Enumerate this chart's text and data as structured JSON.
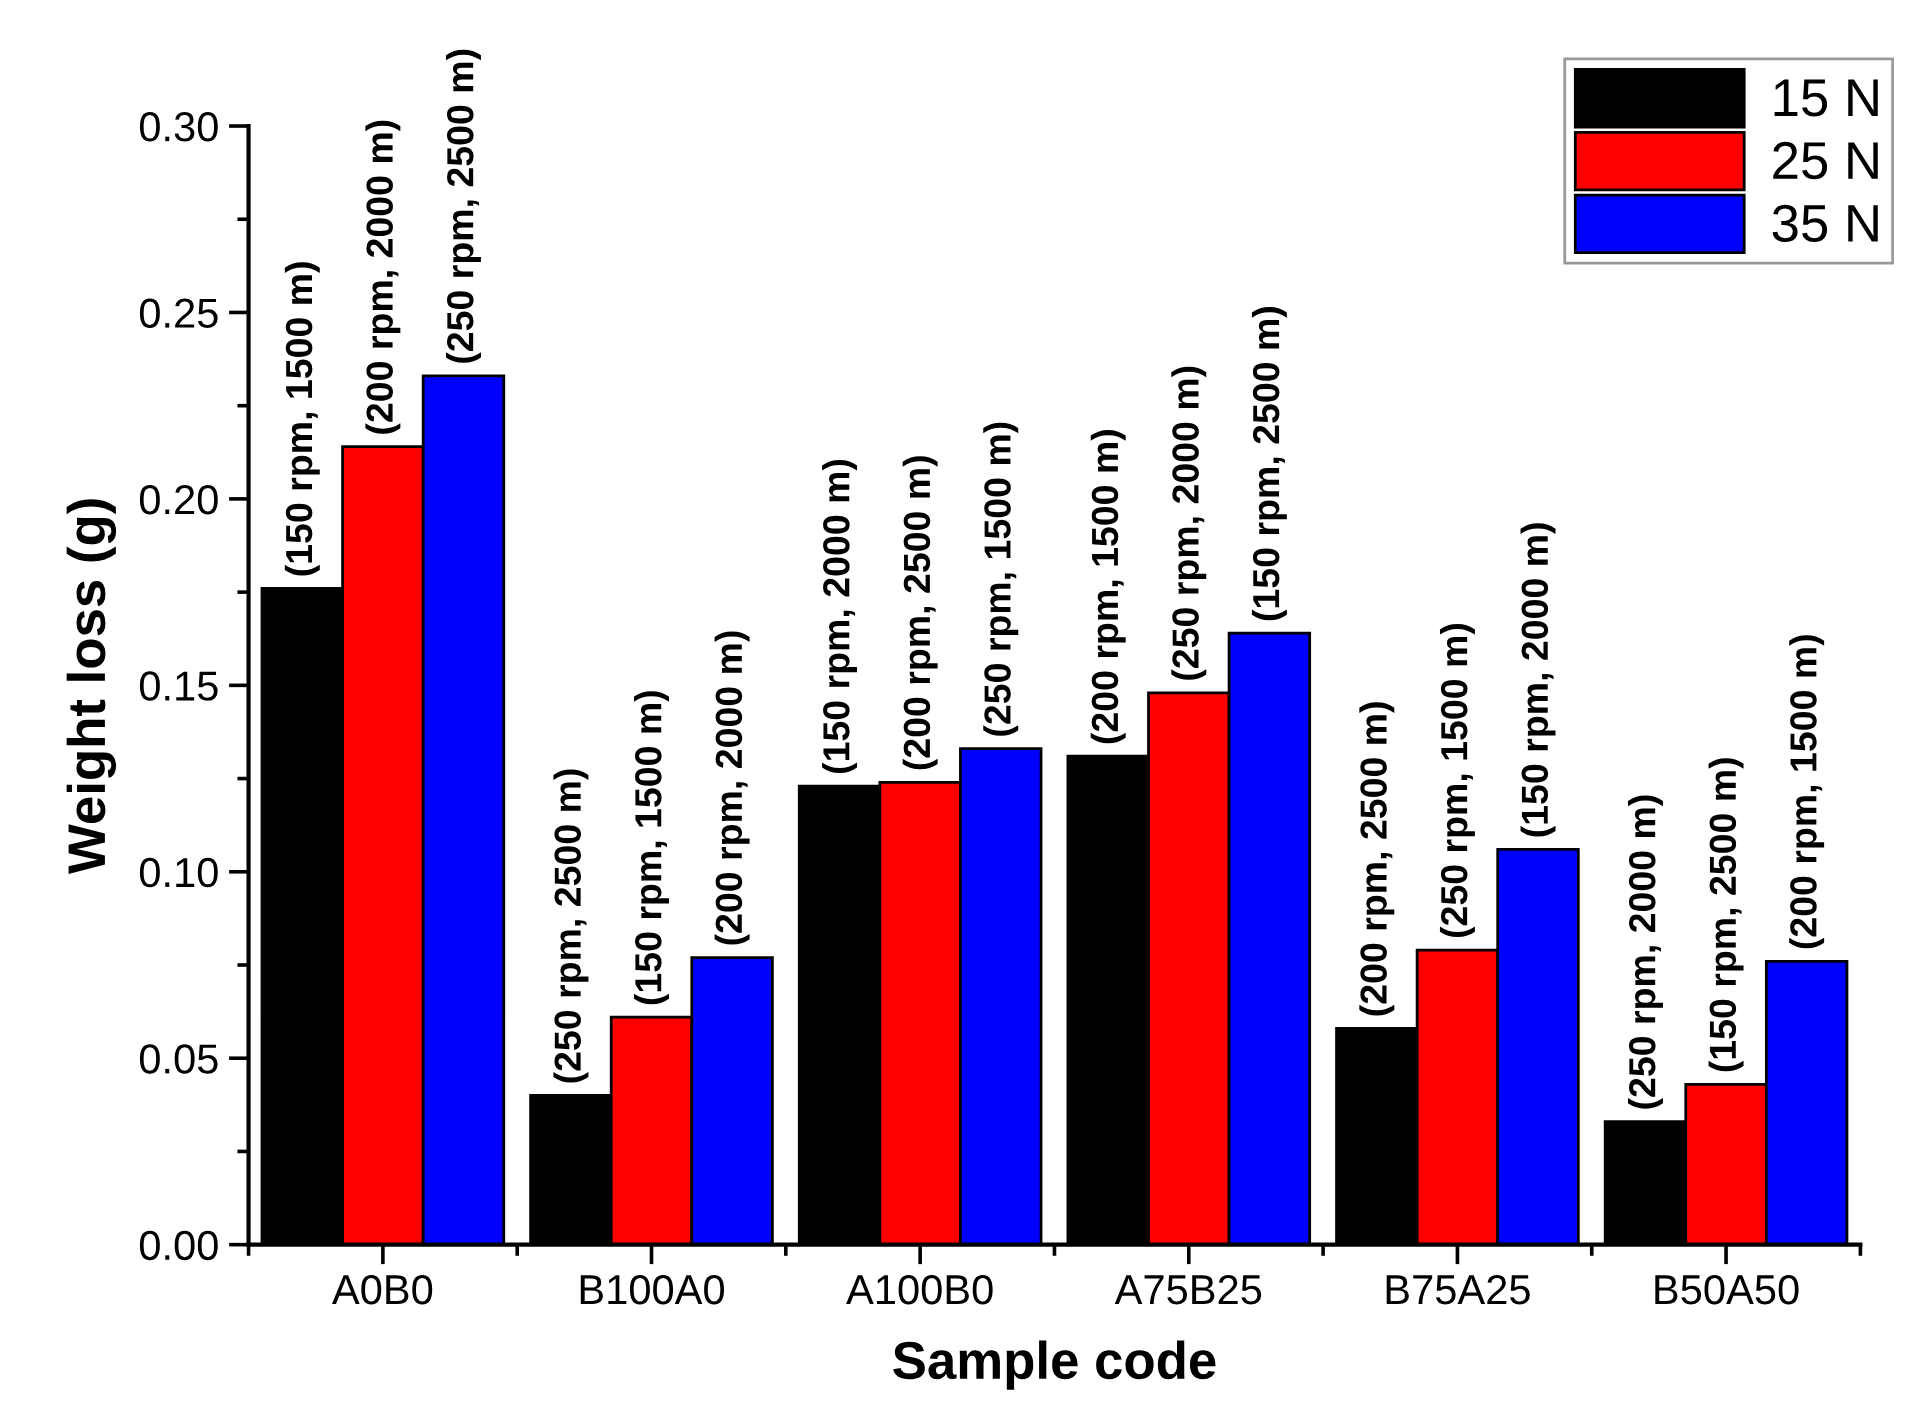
{
  "chart_data": {
    "type": "bar",
    "xlabel": "Sample code",
    "ylabel": "Weight loss (g)",
    "categories": [
      "A0B0",
      "B100A0",
      "A100B0",
      "A75B25",
      "B75A25",
      "B50A50"
    ],
    "series": [
      {
        "name": "15 N",
        "color": "#000000",
        "values": [
          0.176,
          0.04,
          0.123,
          0.131,
          0.058,
          0.033
        ],
        "value_labels": [
          "(150 rpm, 1500 m)",
          "(250 rpm, 2500 m)",
          "(150 rpm, 2000 m)",
          "(200 rpm, 1500 m)",
          "(200 rpm, 2500 m)",
          "(250 rpm, 2000 m)"
        ]
      },
      {
        "name": "25 N",
        "color": "#ff0000",
        "values": [
          0.214,
          0.061,
          0.124,
          0.148,
          0.079,
          0.043
        ],
        "value_labels": [
          "(200 rpm, 2000 m)",
          "(150 rpm, 1500 m)",
          "(200 rpm, 2500 m)",
          "(250 rpm, 2000 m)",
          "(250 rpm, 1500 m)",
          "(150 rpm, 2500 m)"
        ]
      },
      {
        "name": "35 N",
        "color": "#0000ff",
        "values": [
          0.233,
          0.077,
          0.133,
          0.164,
          0.106,
          0.076
        ],
        "value_labels": [
          "(250 rpm, 2500 m)",
          "(200 rpm, 2000 m)",
          "(250 rpm, 1500 m)",
          "(150 rpm, 2500 m)",
          "(150 rpm, 2000 m)",
          "(200 rpm, 1500 m)"
        ]
      }
    ],
    "ylim": [
      0,
      0.3
    ],
    "yticks": [
      {
        "value": 0,
        "label": "0.00"
      },
      {
        "value": 0.05,
        "label": "0.05"
      },
      {
        "value": 0.1,
        "label": "0.10"
      },
      {
        "value": 0.15,
        "label": "0.15"
      },
      {
        "value": 0.2,
        "label": "0.20"
      },
      {
        "value": 0.25,
        "label": "0.25"
      },
      {
        "value": 0.3,
        "label": "0.30"
      }
    ],
    "grid": false,
    "legend": "top right"
  }
}
